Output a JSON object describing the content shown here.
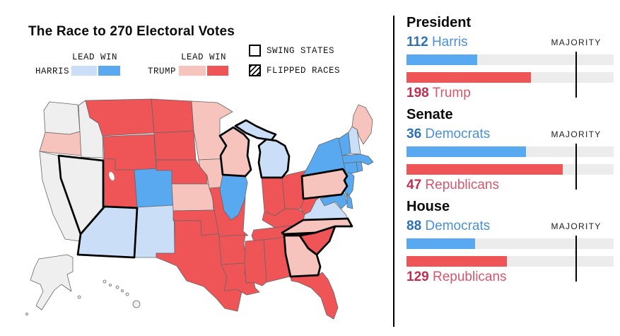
{
  "title": "The Race to 270 Electoral Votes",
  "legend": {
    "lead_win": "LEAD WIN",
    "harris": "HARRIS",
    "trump": "TRUMP",
    "swing_states": "SWING STATES",
    "flipped_races": "FLIPPED RACES"
  },
  "colors": {
    "harris_win": "#58a9f0",
    "harris_lead": "#cadff7",
    "trump_win": "#ef5457",
    "trump_lead": "#f6c3bd",
    "none": "#efefef",
    "bar_track": "#ececec",
    "dem_num": "#2e6fb7",
    "dem_name": "#4a90d9",
    "rep_num": "#c22f4e",
    "rep_name": "#d4576e",
    "divider": "#000000"
  },
  "sections": [
    {
      "heading": "President",
      "majority_label": "MAJORITY",
      "majority": 270,
      "dem": {
        "value": "112",
        "name": "Harris"
      },
      "rep": {
        "value": "198",
        "name": "Trump"
      }
    },
    {
      "heading": "Senate",
      "majority_label": "MAJORITY",
      "majority": 51,
      "dem": {
        "value": "36",
        "name": "Democrats"
      },
      "rep": {
        "value": "47",
        "name": "Republicans"
      }
    },
    {
      "heading": "House",
      "majority_label": "MAJORITY",
      "majority": 218,
      "dem": {
        "value": "88",
        "name": "Democrats"
      },
      "rep": {
        "value": "129",
        "name": "Republicans"
      }
    }
  ],
  "chart_data": [
    {
      "type": "bar",
      "title": "President",
      "categories": [
        "Harris",
        "Trump"
      ],
      "values": [
        112,
        198
      ],
      "majority": 270,
      "annotations": [
        "MAJORITY"
      ]
    },
    {
      "type": "bar",
      "title": "Senate",
      "categories": [
        "Democrats",
        "Republicans"
      ],
      "values": [
        36,
        47
      ],
      "majority": 51,
      "annotations": [
        "MAJORITY"
      ]
    },
    {
      "type": "bar",
      "title": "House",
      "categories": [
        "Democrats",
        "Republicans"
      ],
      "values": [
        88,
        129
      ],
      "majority": 218,
      "annotations": [
        "MAJORITY"
      ]
    },
    {
      "type": "choropleth",
      "title": "The Race to 270 Electoral Votes",
      "legend": [
        "HARRIS LEAD/WIN",
        "TRUMP LEAD/WIN",
        "SWING STATES",
        "FLIPPED RACES"
      ],
      "categories": {
        "harris_win": [
          "CO",
          "IL",
          "NY",
          "VT",
          "MA",
          "RI",
          "CT",
          "NJ",
          "DE",
          "MD"
        ],
        "harris_lead": [
          "AZ",
          "NM",
          "MI",
          "VA",
          "NH"
        ],
        "trump_win": [
          "MT",
          "WY",
          "UT",
          "ND",
          "SD",
          "NE",
          "OK",
          "TX",
          "MO",
          "AR",
          "LA",
          "MS",
          "AL",
          "TN",
          "KY",
          "IN",
          "OH",
          "WV",
          "FL",
          "SC"
        ],
        "trump_lead": [
          "OR",
          "KS",
          "IA",
          "MN",
          "WI",
          "PA",
          "GA",
          "NC",
          "ME"
        ],
        "no_result": [
          "WA",
          "CA",
          "ID",
          "NV",
          "AK",
          "HI"
        ],
        "black_outlined": [
          "NV",
          "AZ",
          "WI",
          "MI",
          "PA",
          "GA",
          "NC",
          "SC"
        ]
      }
    }
  ],
  "map": {
    "states": {
      "WA": {
        "status": "none"
      },
      "OR": {
        "status": "trump_lead"
      },
      "CA": {
        "status": "none"
      },
      "NV": {
        "status": "none",
        "outlined": true
      },
      "ID": {
        "status": "none"
      },
      "MT": {
        "status": "trump_win"
      },
      "WY": {
        "status": "trump_win"
      },
      "UT": {
        "status": "trump_win"
      },
      "CO": {
        "status": "harris_win"
      },
      "AZ": {
        "status": "harris_lead",
        "outlined": true
      },
      "NM": {
        "status": "harris_lead"
      },
      "ND": {
        "status": "trump_win"
      },
      "SD": {
        "status": "trump_win"
      },
      "NE": {
        "status": "trump_win"
      },
      "KS": {
        "status": "trump_lead"
      },
      "OK": {
        "status": "trump_win"
      },
      "TX": {
        "status": "trump_win"
      },
      "MN": {
        "status": "trump_lead"
      },
      "IA": {
        "status": "trump_lead"
      },
      "MO": {
        "status": "trump_win"
      },
      "AR": {
        "status": "trump_win"
      },
      "LA": {
        "status": "trump_win"
      },
      "WI": {
        "status": "trump_lead",
        "outlined": true
      },
      "IL": {
        "status": "harris_win"
      },
      "MI": {
        "status": "harris_lead",
        "outlined": true
      },
      "IN": {
        "status": "trump_win"
      },
      "OH": {
        "status": "trump_win"
      },
      "KY": {
        "status": "trump_win"
      },
      "TN": {
        "status": "trump_win"
      },
      "MS": {
        "status": "trump_win"
      },
      "AL": {
        "status": "trump_win"
      },
      "GA": {
        "status": "trump_lead",
        "outlined": true
      },
      "FL": {
        "status": "trump_win"
      },
      "SC": {
        "status": "trump_win",
        "outlined": true
      },
      "NC": {
        "status": "trump_lead",
        "outlined": true
      },
      "VA": {
        "status": "harris_lead"
      },
      "WV": {
        "status": "trump_win"
      },
      "PA": {
        "status": "trump_lead",
        "outlined": true
      },
      "NY": {
        "status": "harris_win"
      },
      "VT": {
        "status": "harris_win"
      },
      "NH": {
        "status": "harris_lead"
      },
      "ME": {
        "status": "trump_lead"
      },
      "MA": {
        "status": "harris_win"
      },
      "RI": {
        "status": "harris_win"
      },
      "CT": {
        "status": "harris_win"
      },
      "NJ": {
        "status": "harris_win"
      },
      "DE": {
        "status": "harris_win"
      },
      "MD": {
        "status": "harris_win"
      },
      "AK": {
        "status": "none"
      },
      "HI": {
        "status": "none"
      }
    }
  }
}
